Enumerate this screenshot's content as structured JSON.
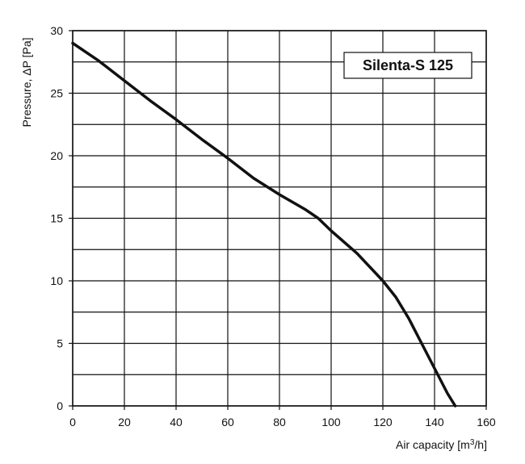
{
  "chart_data": {
    "type": "line",
    "title": "Silenta-S 125",
    "xlabel": {
      "prefix": "Air capacity [m",
      "sup": "3",
      "suffix": "/h]"
    },
    "ylabel": "Pressure, ΔP [Pa]",
    "xlim": [
      0,
      160
    ],
    "ylim": [
      0,
      30
    ],
    "xticks": [
      "0",
      "20",
      "40",
      "60",
      "80",
      "100",
      "120",
      "140",
      "160"
    ],
    "yticks": [
      "0",
      "5",
      "10",
      "15",
      "20",
      "25",
      "30"
    ],
    "grid": true,
    "x_grid_step": 20,
    "y_grid_step": 2.5,
    "legend": "top-right box",
    "series": [
      {
        "color": "#111111",
        "x": [
          0,
          10,
          20,
          30,
          40,
          50,
          60,
          70,
          80,
          90,
          95,
          100,
          110,
          120,
          125,
          130,
          135,
          140,
          145,
          148
        ],
        "y": [
          29,
          27.6,
          26.0,
          24.4,
          22.9,
          21.3,
          19.8,
          18.2,
          16.9,
          15.7,
          15.0,
          14.0,
          12.2,
          10.0,
          8.7,
          7.0,
          5.0,
          3.0,
          1.0,
          0
        ]
      }
    ]
  }
}
